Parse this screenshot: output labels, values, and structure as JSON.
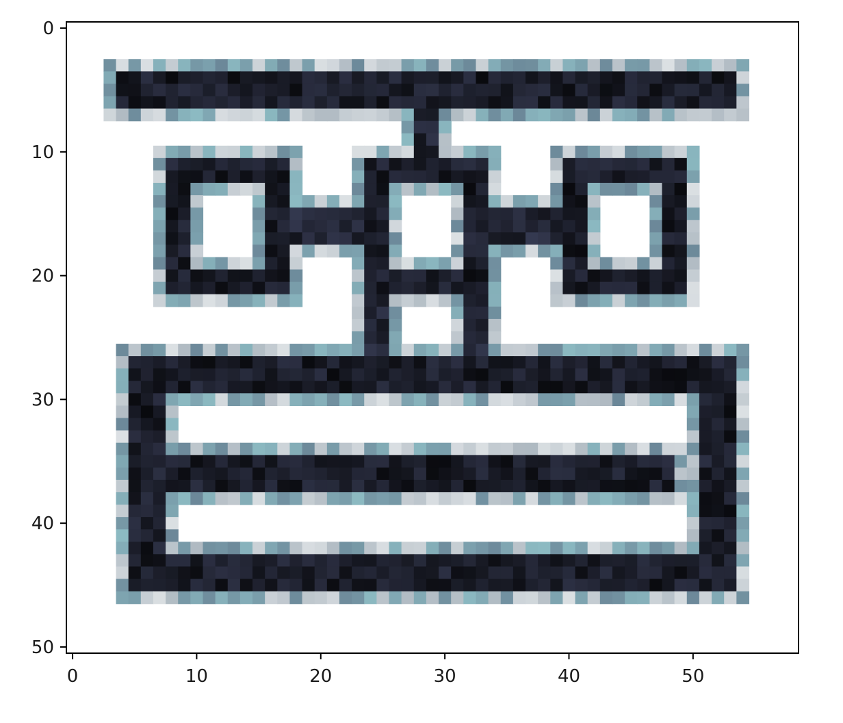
{
  "chart_data": {
    "type": "heatmap",
    "title": "",
    "xlabel": "",
    "ylabel": "",
    "colormap": "bone_r",
    "grid": false,
    "xlim": [
      -0.5,
      58.5
    ],
    "ylim": [
      50.5,
      -0.5
    ],
    "x_ticks": [
      0,
      10,
      20,
      30,
      40,
      50
    ],
    "y_ticks": [
      0,
      10,
      20,
      30,
      40,
      50
    ],
    "x_tick_labels": [
      "0",
      "10",
      "20",
      "30",
      "40",
      "50"
    ],
    "y_tick_labels": [
      "0",
      "10",
      "20",
      "30",
      "40",
      "50"
    ],
    "shape": [
      51,
      59
    ],
    "strokes": [
      {
        "kind": "bar",
        "x0": 4,
        "x1": 54,
        "y0": 4,
        "y1": 7,
        "value": 0.95
      },
      {
        "kind": "bar",
        "x0": 28,
        "x1": 30,
        "y0": 7,
        "y1": 12,
        "value": 0.92
      },
      {
        "kind": "ring",
        "x0": 8,
        "x1": 18,
        "y0": 11,
        "y1": 22,
        "t": 2,
        "value": 0.95
      },
      {
        "kind": "ring",
        "x0": 24,
        "x1": 34,
        "y0": 11,
        "y1": 22,
        "t": 2,
        "value": 0.95
      },
      {
        "kind": "ring",
        "x0": 40,
        "x1": 50,
        "y0": 11,
        "y1": 22,
        "t": 2,
        "value": 0.95
      },
      {
        "kind": "bar",
        "x0": 18,
        "x1": 24,
        "y0": 15,
        "y1": 18,
        "value": 0.9
      },
      {
        "kind": "bar",
        "x0": 34,
        "x1": 40,
        "y0": 15,
        "y1": 18,
        "value": 0.9
      },
      {
        "kind": "bar",
        "x0": 24,
        "x1": 26,
        "y0": 21,
        "y1": 28,
        "value": 0.9
      },
      {
        "kind": "bar",
        "x0": 32,
        "x1": 34,
        "y0": 21,
        "y1": 28,
        "value": 0.9
      },
      {
        "kind": "bar",
        "x0": 5,
        "x1": 54,
        "y0": 27,
        "y1": 30,
        "value": 0.95
      },
      {
        "kind": "bar",
        "x0": 5,
        "x1": 8,
        "y0": 27,
        "y1": 46,
        "value": 0.95
      },
      {
        "kind": "bar",
        "x0": 51,
        "x1": 54,
        "y0": 27,
        "y1": 46,
        "value": 0.95
      },
      {
        "kind": "bar",
        "x0": 8,
        "x1": 49,
        "y0": 35,
        "y1": 38,
        "value": 0.95
      },
      {
        "kind": "bar",
        "x0": 5,
        "x1": 54,
        "y0": 43,
        "y1": 46,
        "value": 0.95
      }
    ]
  }
}
